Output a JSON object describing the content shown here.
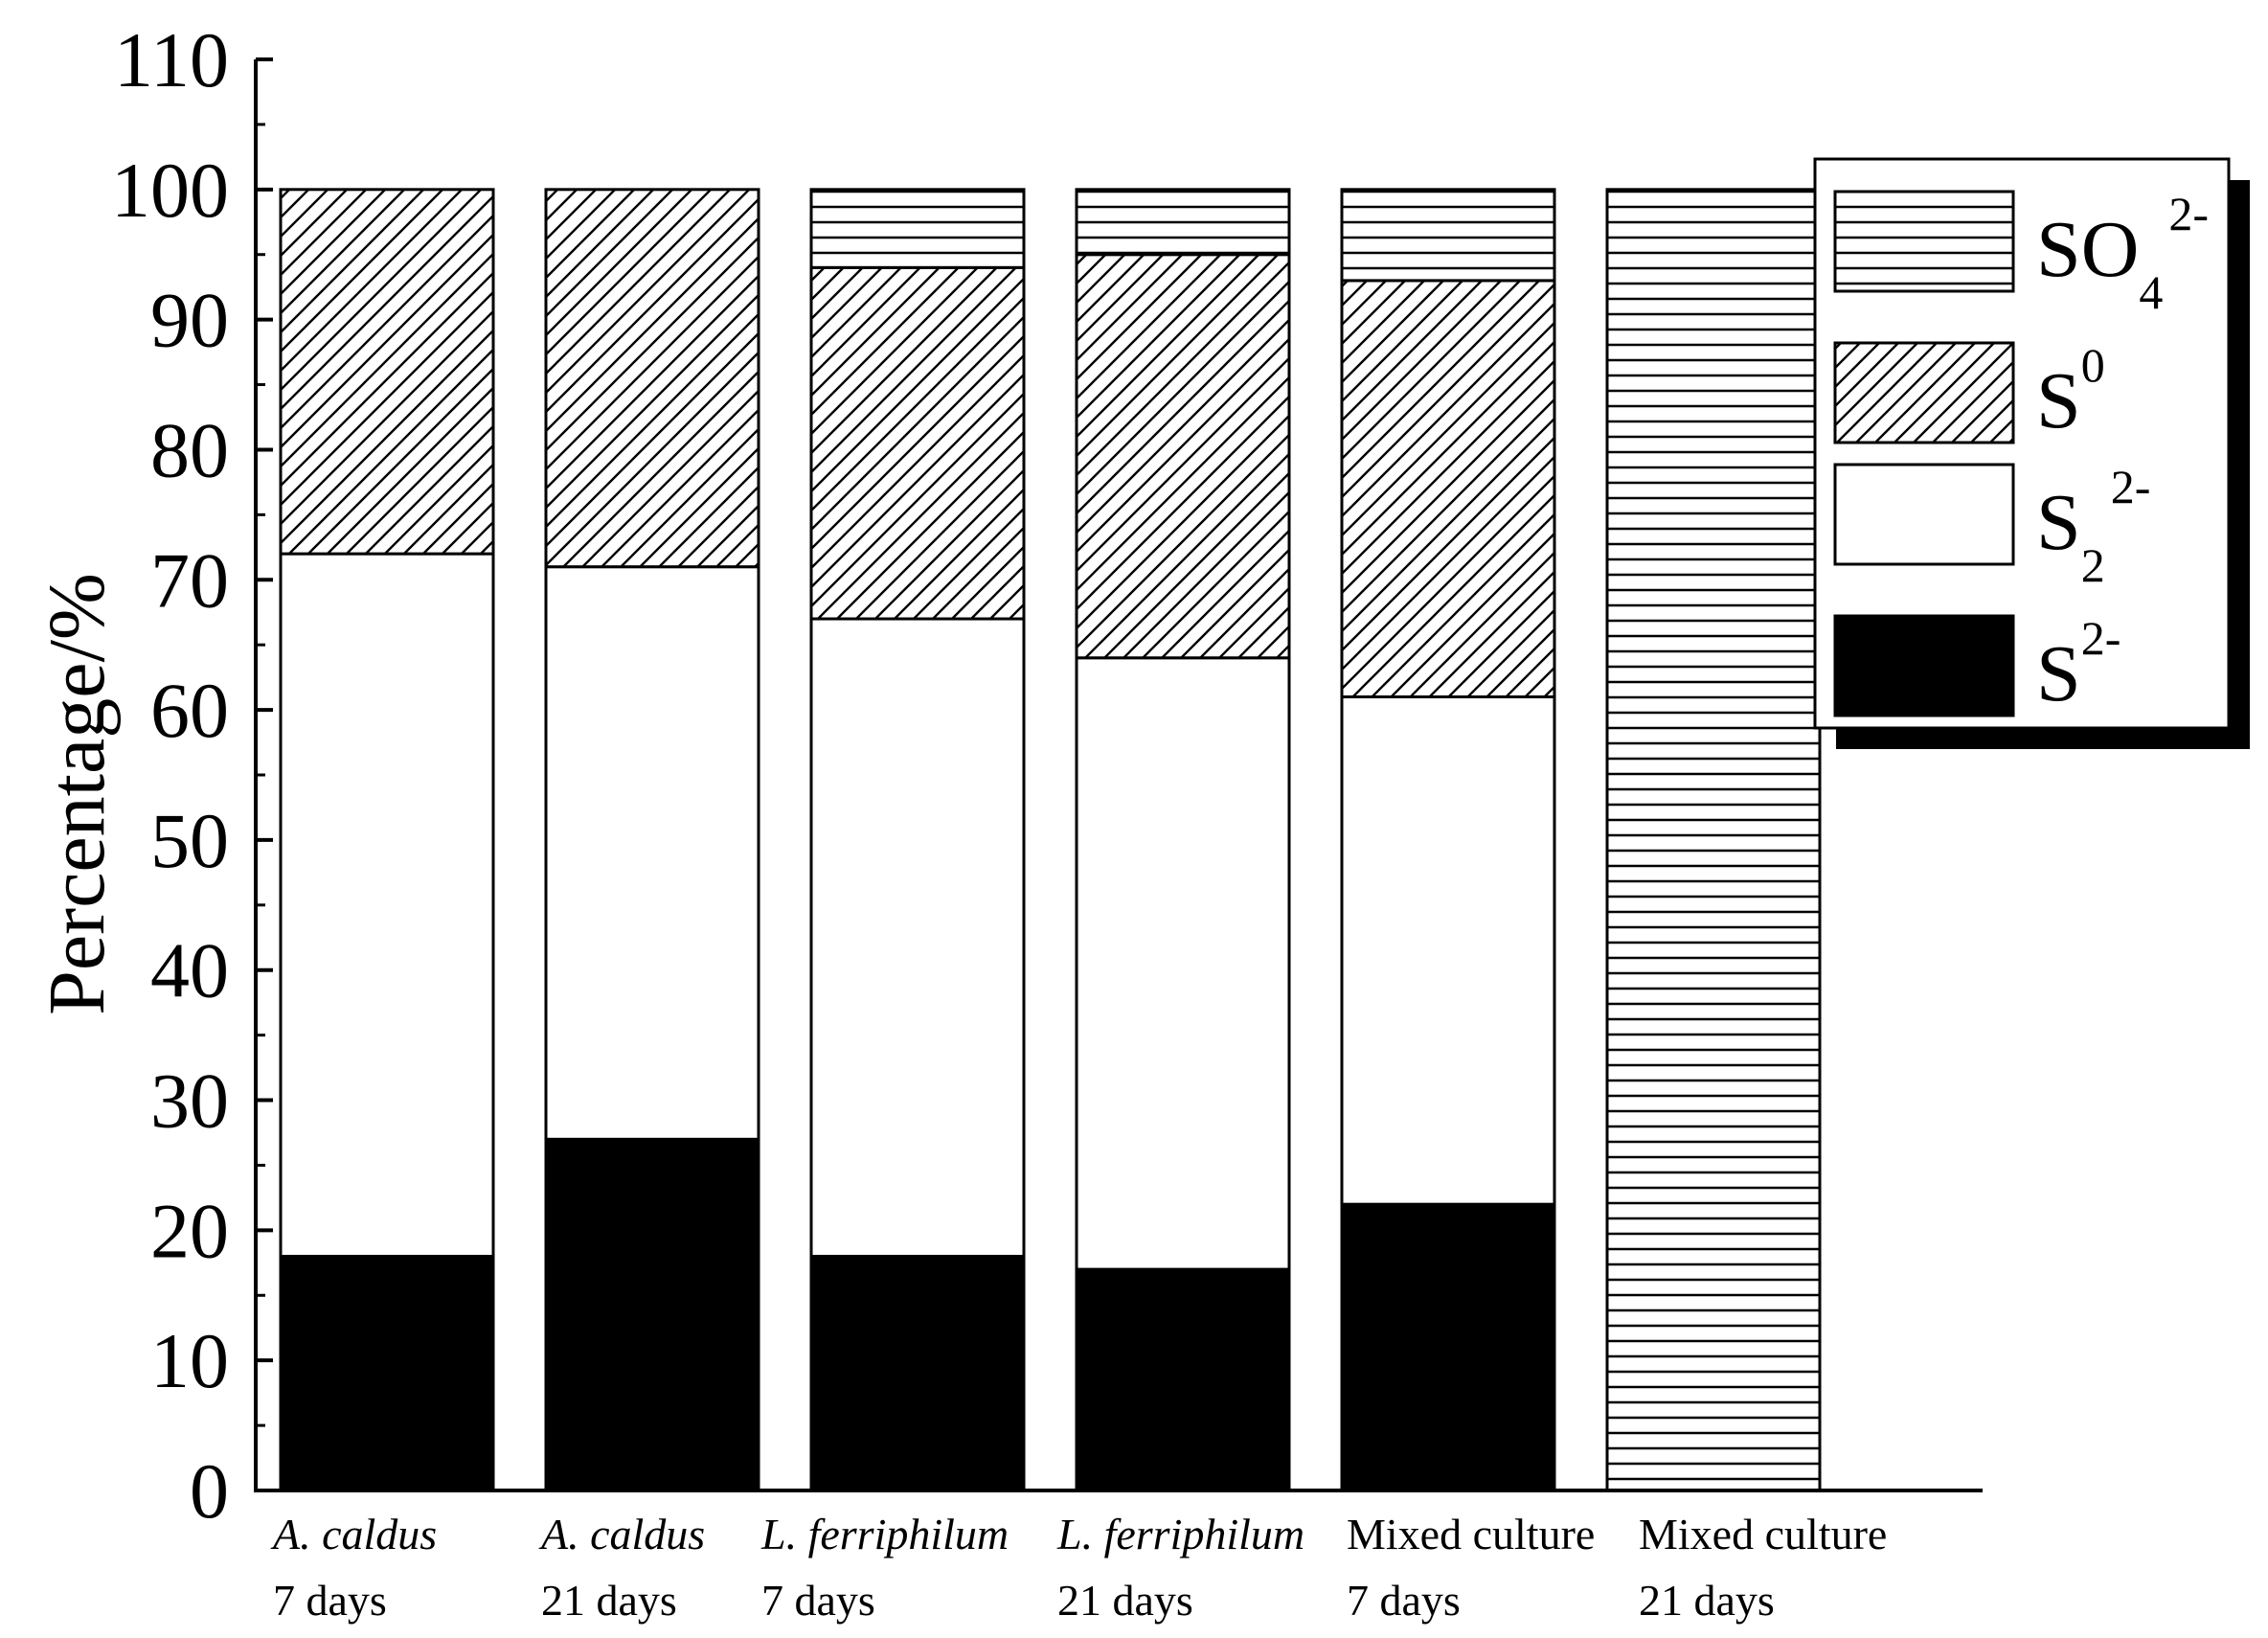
{
  "chart_data": {
    "type": "bar",
    "stacked": true,
    "ylabel": "Percentage/%",
    "ylim": [
      0,
      110
    ],
    "yticks": [
      "0",
      "10",
      "20",
      "30",
      "40",
      "50",
      "60",
      "70",
      "80",
      "90",
      "100",
      "110"
    ],
    "categories": [
      {
        "name": "A. caldus",
        "italic": true,
        "period": "7 days"
      },
      {
        "name": "A. caldus",
        "italic": true,
        "period": "21 days"
      },
      {
        "name": "L. ferriphilum",
        "italic": true,
        "period": "7 days"
      },
      {
        "name": "L. ferriphilum",
        "italic": true,
        "period": "21 days"
      },
      {
        "name": "Mixed culture",
        "italic": false,
        "period": "7 days"
      },
      {
        "name": "Mixed culture",
        "italic": false,
        "period": "21 days"
      }
    ],
    "series": [
      {
        "key": "s2",
        "legend_base": "S",
        "legend_sub": "",
        "legend_sup": "2-",
        "pattern": "solid-black",
        "values": [
          18,
          27,
          18,
          17,
          22,
          0
        ]
      },
      {
        "key": "s22",
        "legend_base": "S",
        "legend_sub": "2",
        "legend_sup": "2-",
        "pattern": "white",
        "values": [
          54,
          44,
          49,
          47,
          39,
          0
        ]
      },
      {
        "key": "s0",
        "legend_base": "S",
        "legend_sub": "",
        "legend_sup": "0",
        "pattern": "diagonal-hatch",
        "values": [
          28,
          29,
          27,
          31,
          32,
          0
        ]
      },
      {
        "key": "so4",
        "legend_base": "SO",
        "legend_sub": "4",
        "legend_sup": "2-",
        "pattern": "horizontal-lines",
        "values": [
          0,
          0,
          6,
          5,
          7,
          100
        ]
      }
    ],
    "legend": {
      "placement": "top-right",
      "order": [
        "so4",
        "s0",
        "s22",
        "s2"
      ]
    },
    "grid": false
  }
}
